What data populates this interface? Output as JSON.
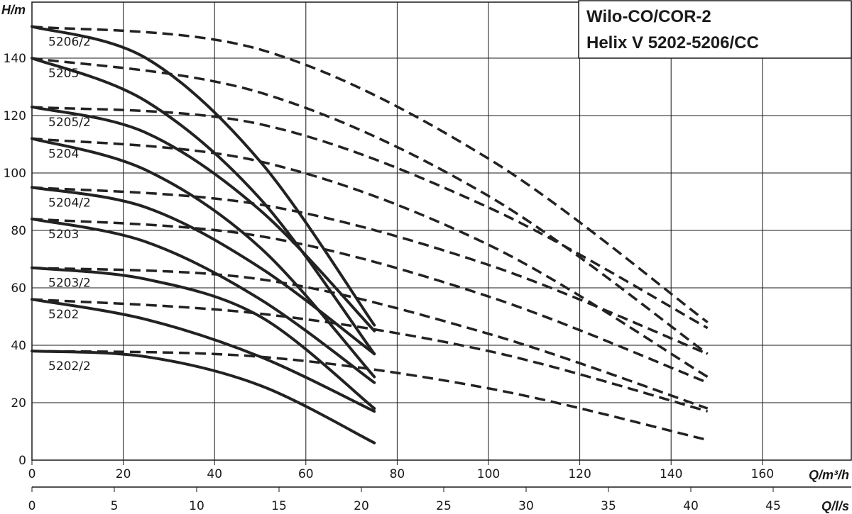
{
  "chart_data": {
    "type": "line",
    "title": [
      "Wilo-CO/COR-2",
      "Helix V 5202-5206/CC"
    ],
    "ylabel": "H/m",
    "xlabel": "Q/m³/h",
    "xlabel2": "Q/l/s",
    "ylim": [
      0,
      150
    ],
    "xlim": [
      0,
      172
    ],
    "xlim2": [
      0,
      47.8
    ],
    "grid": true,
    "y_ticks": [
      "0",
      "20",
      "40",
      "60",
      "80",
      "100",
      "120",
      "140"
    ],
    "x_ticks": [
      "0",
      "20",
      "40",
      "60",
      "80",
      "100",
      "120",
      "140",
      "160"
    ],
    "x2_ticks": [
      "0",
      "5",
      "10",
      "15",
      "20",
      "25",
      "30",
      "35",
      "40",
      "45"
    ],
    "series": [
      {
        "name": "5206/2",
        "style": "solid",
        "x": [
          0,
          25,
          50,
          75
        ],
        "y": [
          151,
          140,
          104,
          47
        ]
      },
      {
        "name": "5206/2",
        "style": "dashed",
        "x": [
          0,
          50,
          100,
          148
        ],
        "y": [
          151,
          143,
          105,
          48
        ]
      },
      {
        "name": "5205",
        "style": "solid",
        "x": [
          0,
          25,
          50,
          75
        ],
        "y": [
          140,
          125,
          91,
          37
        ]
      },
      {
        "name": "5205",
        "style": "dashed",
        "x": [
          0,
          50,
          100,
          148
        ],
        "y": [
          140,
          128,
          92,
          37
        ]
      },
      {
        "name": "5205/2",
        "style": "solid",
        "x": [
          0,
          25,
          50,
          75
        ],
        "y": [
          123,
          114,
          87,
          45
        ]
      },
      {
        "name": "5205/2",
        "style": "dashed",
        "x": [
          0,
          50,
          100,
          148
        ],
        "y": [
          123,
          117,
          88,
          46
        ]
      },
      {
        "name": "5204",
        "style": "solid",
        "x": [
          0,
          25,
          50,
          75
        ],
        "y": [
          112,
          101,
          74,
          29
        ]
      },
      {
        "name": "5204",
        "style": "dashed",
        "x": [
          0,
          50,
          100,
          148
        ],
        "y": [
          112,
          104,
          75,
          29
        ]
      },
      {
        "name": "5204/2",
        "style": "solid",
        "x": [
          0,
          25,
          50,
          75
        ],
        "y": [
          95,
          88,
          67,
          37
        ]
      },
      {
        "name": "5204/2",
        "style": "dashed",
        "x": [
          0,
          50,
          100,
          148
        ],
        "y": [
          95,
          89,
          68,
          37
        ]
      },
      {
        "name": "5203",
        "style": "solid",
        "x": [
          0,
          25,
          50,
          75
        ],
        "y": [
          84,
          76,
          56,
          27
        ]
      },
      {
        "name": "5203",
        "style": "dashed",
        "x": [
          0,
          50,
          100,
          148
        ],
        "y": [
          84,
          78,
          57,
          27
        ]
      },
      {
        "name": "5203/2",
        "style": "solid",
        "x": [
          0,
          25,
          50,
          75
        ],
        "y": [
          67,
          63,
          50,
          18
        ]
      },
      {
        "name": "5203/2",
        "style": "dashed",
        "x": [
          0,
          50,
          100,
          148
        ],
        "y": [
          67,
          63,
          44,
          18
        ]
      },
      {
        "name": "5202",
        "style": "solid",
        "x": [
          0,
          25,
          50,
          75
        ],
        "y": [
          56,
          49,
          36,
          17
        ]
      },
      {
        "name": "5202",
        "style": "dashed",
        "x": [
          0,
          50,
          100,
          148
        ],
        "y": [
          56,
          51,
          38,
          17
        ]
      },
      {
        "name": "5202/2",
        "style": "solid",
        "x": [
          0,
          25,
          50,
          75
        ],
        "y": [
          38,
          36,
          26,
          6
        ]
      },
      {
        "name": "5202/2",
        "style": "dashed",
        "x": [
          0,
          50,
          100,
          148
        ],
        "y": [
          38,
          36,
          25,
          7
        ]
      }
    ]
  }
}
